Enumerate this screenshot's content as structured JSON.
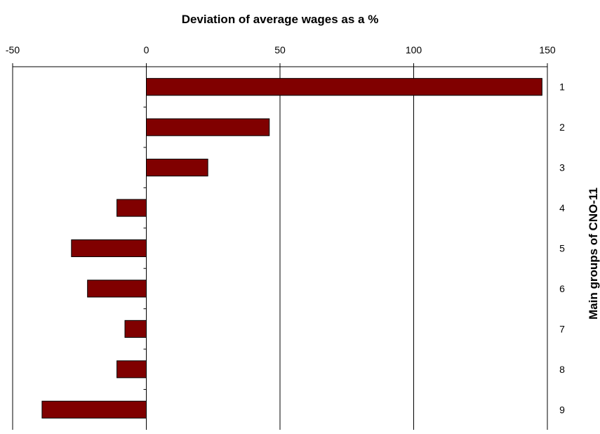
{
  "chart_data": {
    "type": "bar",
    "orientation": "horizontal",
    "title": "Deviation of average wages as a %",
    "xlabel": "",
    "ylabel": "Main groups of CNO-11",
    "xlim": [
      -50,
      150
    ],
    "xticks": [
      -50,
      0,
      50,
      100,
      150
    ],
    "x_tick_labels": [
      "-50",
      "0",
      "50",
      "100",
      "150"
    ],
    "x_axis_position": "top",
    "y_axis_position": "right",
    "grid": "vertical",
    "legend": "none",
    "categories": [
      "1",
      "2",
      "3",
      "4",
      "5",
      "6",
      "7",
      "8",
      "9"
    ],
    "values": [
      148,
      46,
      23,
      -11,
      -28,
      -22,
      -8,
      -11,
      -39
    ],
    "bar_color": "#800000"
  }
}
